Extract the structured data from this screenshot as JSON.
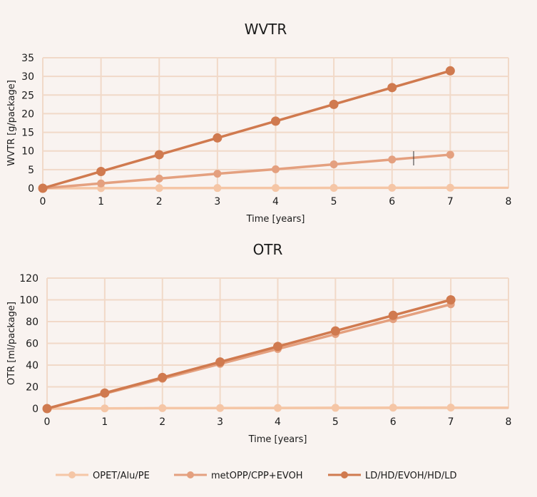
{
  "colors": {
    "background": "#f9f3f0",
    "grid": "#f1d9c8",
    "axis": "#f1d9c8"
  },
  "legend": {
    "items": [
      {
        "label": "OPET/Alu/PE",
        "color": "#f5c6a6"
      },
      {
        "label": "metOPP/CPP+EVOH",
        "color": "#e4a07f"
      },
      {
        "label": "LD/HD/EVOH/HD/LD",
        "color": "#d07a4f"
      }
    ]
  },
  "chart_data": [
    {
      "type": "line",
      "title": "WVTR",
      "xlabel": "Time [years]",
      "ylabel": "WVTR [g/package]",
      "xlim": [
        0,
        8
      ],
      "ylim": [
        0,
        35
      ],
      "xticks": [
        0,
        1,
        2,
        3,
        4,
        5,
        6,
        7,
        8
      ],
      "yticks": [
        0,
        5,
        10,
        15,
        20,
        25,
        30,
        35
      ],
      "grid": true,
      "x": [
        0,
        1,
        2,
        3,
        4,
        5,
        6,
        7
      ],
      "series": [
        {
          "name": "OPET/Alu/PE",
          "color": "#f5c6a6",
          "values": [
            0,
            0.02,
            0.04,
            0.06,
            0.08,
            0.1,
            0.12,
            0.14
          ]
        },
        {
          "name": "metOPP/CPP+EVOH",
          "color": "#e4a07f",
          "values": [
            0,
            1.3,
            2.6,
            3.9,
            5.1,
            6.4,
            7.7,
            9.0
          ]
        },
        {
          "name": "LD/HD/EVOH/HD/LD",
          "color": "#d07a4f",
          "values": [
            0,
            4.5,
            9.0,
            13.5,
            18.0,
            22.5,
            27.0,
            31.5
          ]
        }
      ]
    },
    {
      "type": "line",
      "title": "OTR",
      "xlabel": "Time [years]",
      "ylabel": "OTR [ml/package]",
      "xlim": [
        0,
        8
      ],
      "ylim": [
        0,
        120
      ],
      "xticks": [
        0,
        1,
        2,
        3,
        4,
        5,
        6,
        7,
        8
      ],
      "yticks": [
        0,
        20,
        40,
        60,
        80,
        100,
        120
      ],
      "grid": true,
      "x": [
        0,
        1,
        2,
        3,
        4,
        5,
        6,
        7
      ],
      "series": [
        {
          "name": "OPET/Alu/PE",
          "color": "#f5c6a6",
          "values": [
            0,
            0.2,
            0.4,
            0.5,
            0.6,
            0.7,
            0.8,
            0.9
          ]
        },
        {
          "name": "metOPP/CPP+EVOH",
          "color": "#e4a07f",
          "values": [
            0,
            13.7,
            27.4,
            41.1,
            54.8,
            68.5,
            82.2,
            95.9
          ]
        },
        {
          "name": "LD/HD/EVOH/HD/LD",
          "color": "#d07a4f",
          "values": [
            0,
            14.3,
            28.6,
            42.9,
            57.1,
            71.4,
            85.7,
            100
          ]
        }
      ]
    }
  ]
}
